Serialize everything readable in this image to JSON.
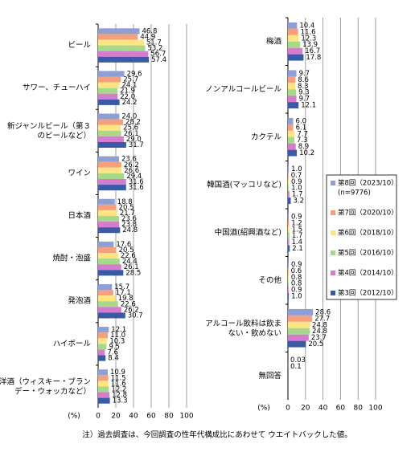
{
  "chart_data": [
    {
      "type": "bar",
      "orientation": "horizontal",
      "xlabel": "(%)",
      "categories": [
        "ビール",
        "サワー、チューハイ",
        "新ジャンルビール（第３\nのビールなど）",
        "ワイン",
        "日本酒",
        "焼酎・泡盛",
        "発泡酒",
        "ハイボール",
        "洋酒（ウィスキー・ブラン\nデー・ウォッカなど）"
      ],
      "series": [
        {
          "name": "第8回（2023/10）",
          "color": "#8e9fd6",
          "values": [
            46.8,
            29.6,
            24.0,
            23.6,
            18.8,
            17.6,
            15.7,
            12.1,
            10.9
          ],
          "value_labels": [
            "46.8",
            "29.6",
            "24.0",
            "23.6",
            "18.8",
            "17.6",
            "15.7",
            "12.1",
            "10.9"
          ]
        },
        {
          "name": "第7回（2020/10）",
          "color": "#f4a07c",
          "values": [
            44.9,
            25.7,
            28.2,
            26.2,
            20.5,
            20.5,
            17.1,
            11.0,
            11.5
          ],
          "value_labels": [
            "44.9",
            "25.7",
            "28.2",
            "26.2",
            "20.5",
            "20.5",
            "17.1",
            "11.0",
            "11.5"
          ]
        },
        {
          "name": "第6回（2018/10）",
          "color": "#ffe483",
          "values": [
            51.7,
            24.1,
            25.6,
            26.6,
            21.7,
            22.6,
            19.8,
            10.3,
            11.6
          ],
          "value_labels": [
            "51.7",
            "24.1",
            "25.6",
            "26.6",
            "21.7",
            "22.6",
            "19.8",
            "10.3",
            "11.6"
          ]
        },
        {
          "name": "第5回（2016/10）",
          "color": "#a7d98b",
          "values": [
            53.2,
            21.9,
            26.1,
            29.4,
            23.6,
            24.4,
            22.6,
            9.5,
            12.2
          ],
          "value_labels": [
            "53.2",
            "21.9",
            "26.1",
            "29.4",
            "23.6",
            "24.4",
            "22.6",
            "9.5",
            "12.2"
          ]
        },
        {
          "name": "第4回（2014/10）",
          "color": "#d67ccf",
          "values": [
            56.7,
            22.0,
            29.0,
            31.6,
            23.8,
            26.1,
            26.2,
            7.6,
            12.8
          ],
          "value_labels": [
            "56.7",
            "22.0",
            "29.0",
            "31.6",
            "23.8",
            "26.1",
            "26.2",
            "7.6",
            "12.8"
          ]
        },
        {
          "name": "第3回（2012/10）",
          "color": "#3b5aa6",
          "values": [
            57.4,
            24.2,
            31.7,
            31.6,
            24.8,
            28.5,
            30.7,
            8.4,
            13.3
          ],
          "value_labels": [
            "57.4",
            "24.2",
            "31.7",
            "31.6",
            "24.8",
            "28.5",
            "30.7",
            "8.4",
            "13.3"
          ]
        }
      ],
      "xlim": [
        0,
        100
      ],
      "xticks": [
        0,
        20,
        40,
        60,
        80,
        100
      ],
      "grid": true
    },
    {
      "type": "bar",
      "orientation": "horizontal",
      "xlabel": "(%)",
      "categories": [
        "梅酒",
        "ノンアルコールビール",
        "カクテル",
        "韓国酒(マッコリなど)",
        "中国酒(紹興酒など)",
        "その他",
        "アルコール飲料は飲ま\nない・飲めない",
        "無回答"
      ],
      "series": [
        {
          "name": "第8回（2023/10）",
          "note": "(n=9776)",
          "color": "#8e9fd6",
          "values": [
            10.4,
            9.7,
            6.0,
            1.0,
            0.9,
            0.9,
            28.6,
            0.03
          ],
          "value_labels": [
            "10.4",
            "9.7",
            "6.0",
            "1.0",
            "0.9",
            "0.9",
            "28.6",
            "0.03"
          ]
        },
        {
          "name": "第7回（2020/10）",
          "color": "#f4a07c",
          "values": [
            11.6,
            8.6,
            6.1,
            0.7,
            1.2,
            0.6,
            27.7,
            0.1
          ],
          "value_labels": [
            "11.6",
            "8.6",
            "6.1",
            "0.7",
            "1.2",
            "0.6",
            "27.7",
            "0.1"
          ]
        },
        {
          "name": "第6回（2018/10）",
          "color": "#ffe483",
          "values": [
            12.3,
            8.3,
            7.7,
            0.9,
            1.5,
            0.8,
            24.8,
            null
          ],
          "value_labels": [
            "12.3",
            "8.3",
            "7.7",
            "0.9",
            "1.5",
            "0.8",
            "24.8",
            null
          ]
        },
        {
          "name": "第5回（2016/10）",
          "color": "#a7d98b",
          "values": [
            13.9,
            9.3,
            7.3,
            1.0,
            1.7,
            0.8,
            24.8,
            null
          ],
          "value_labels": [
            "13.9",
            "9.3",
            "7.3",
            "1.0",
            "1.7",
            "0.8",
            "24.8",
            null
          ]
        },
        {
          "name": "第4回（2014/10）",
          "color": "#d67ccf",
          "values": [
            16.7,
            9.7,
            8.9,
            1.7,
            1.4,
            0.9,
            23.7,
            null
          ],
          "value_labels": [
            "16.7",
            "9.7",
            "8.9",
            "1.7",
            "1.4",
            "0.9",
            "23.7",
            null
          ]
        },
        {
          "name": "第3回（2012/10）",
          "color": "#3b5aa6",
          "values": [
            17.8,
            12.1,
            10.2,
            3.2,
            2.1,
            1.0,
            20.5,
            null
          ],
          "value_labels": [
            "17.8",
            "12.1",
            "10.2",
            "3.2",
            "2.1",
            "1.0",
            "20.5",
            null
          ]
        }
      ],
      "xlim": [
        0,
        100
      ],
      "xticks": [
        0,
        20,
        40,
        60,
        80,
        100
      ],
      "grid": true,
      "legend": "center right"
    }
  ],
  "footnote": "注）過去調査は、今回調査の性年代構成比にあわせて ウエイトバックした値。"
}
